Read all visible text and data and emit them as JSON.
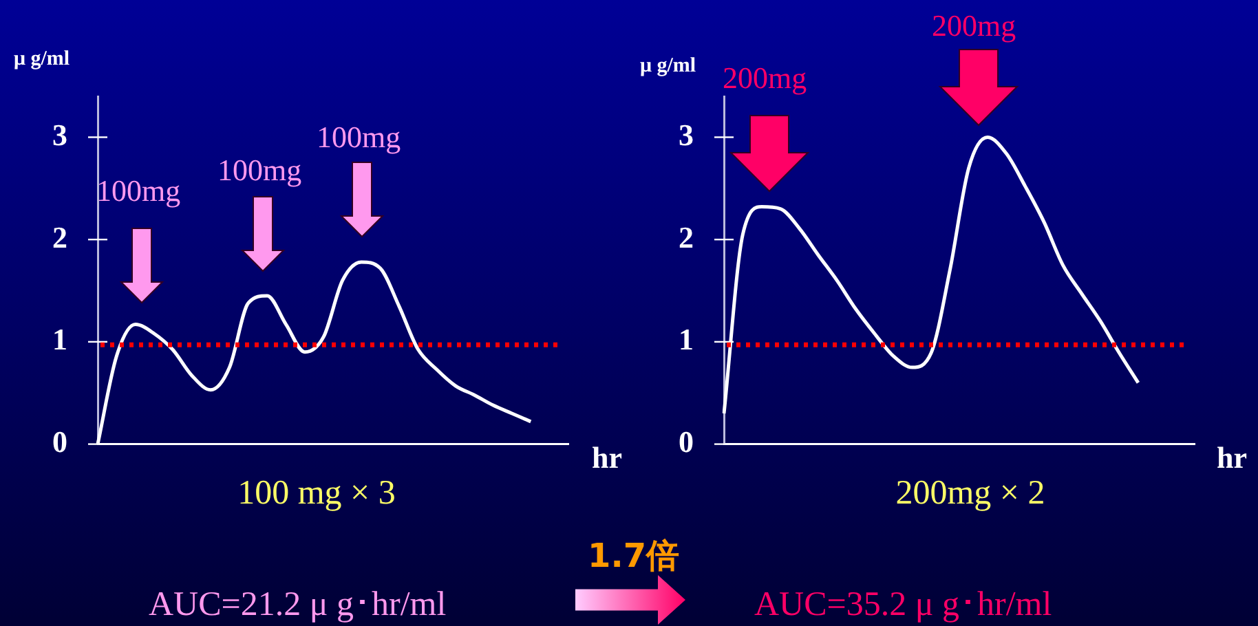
{
  "chart_data": [
    {
      "type": "line",
      "title": "100 mg × 3",
      "xlabel": "hr",
      "ylabel": "μ g/ml",
      "categories": [
        null,
        null,
        null,
        null,
        null,
        null,
        null,
        null,
        null,
        null,
        null,
        null,
        null,
        null,
        null,
        null,
        null,
        null,
        null,
        null,
        null,
        null,
        null,
        null,
        null,
        null
      ],
      "series": [
        {
          "color": "#ffffff",
          "values": [
            0,
            0.86,
            1.17,
            1.08,
            0.92,
            0.67,
            0.53,
            0.75,
            1.38,
            1.45,
            1.17,
            0.9,
            1.05,
            1.6,
            1.78,
            1.72,
            1.35,
            0.93,
            0.73,
            0.57,
            0.48,
            0.38,
            0.3,
            0.22,
            null,
            null
          ]
        }
      ],
      "ylim": [
        0,
        3.4
      ],
      "yticks": [
        0,
        1,
        2,
        3
      ],
      "grid": false,
      "legend": false,
      "marker": "none",
      "line_style": "solid",
      "ref_lines": [
        {
          "axis": "y",
          "value": 0.97,
          "color": "#ff0000",
          "line_style": "dotted"
        }
      ],
      "annotations": [
        "100mg",
        "100mg",
        "100mg",
        "AUC=21.2 μ g･hr/ml"
      ]
    },
    {
      "type": "line",
      "title": "200mg × 2",
      "xlabel": "hr",
      "ylabel": "μ g/ml",
      "categories": [
        null,
        null,
        null,
        null,
        null,
        null,
        null,
        null,
        null,
        null,
        null,
        null,
        null,
        null,
        null,
        null,
        null,
        null,
        null,
        null,
        null,
        null,
        null,
        null,
        null,
        null
      ],
      "series": [
        {
          "color": "#ffffff",
          "values": [
            0.3,
            2.05,
            2.32,
            2.3,
            2.11,
            1.85,
            1.6,
            1.32,
            1.08,
            0.86,
            0.75,
            0.89,
            1.7,
            2.7,
            3.0,
            2.84,
            2.52,
            2.17,
            1.75,
            1.47,
            1.2,
            0.89,
            0.6,
            null,
            null,
            null
          ]
        }
      ],
      "ylim": [
        0,
        3.4
      ],
      "yticks": [
        0,
        1,
        2,
        3
      ],
      "grid": false,
      "legend": false,
      "marker": "none",
      "line_style": "solid",
      "ref_lines": [
        {
          "axis": "y",
          "value": 0.97,
          "color": "#ff0000",
          "line_style": "dotted"
        }
      ],
      "annotations": [
        "200mg",
        "200mg",
        "1.7倍",
        "AUC=35.2 μ g･hr/ml"
      ]
    }
  ]
}
